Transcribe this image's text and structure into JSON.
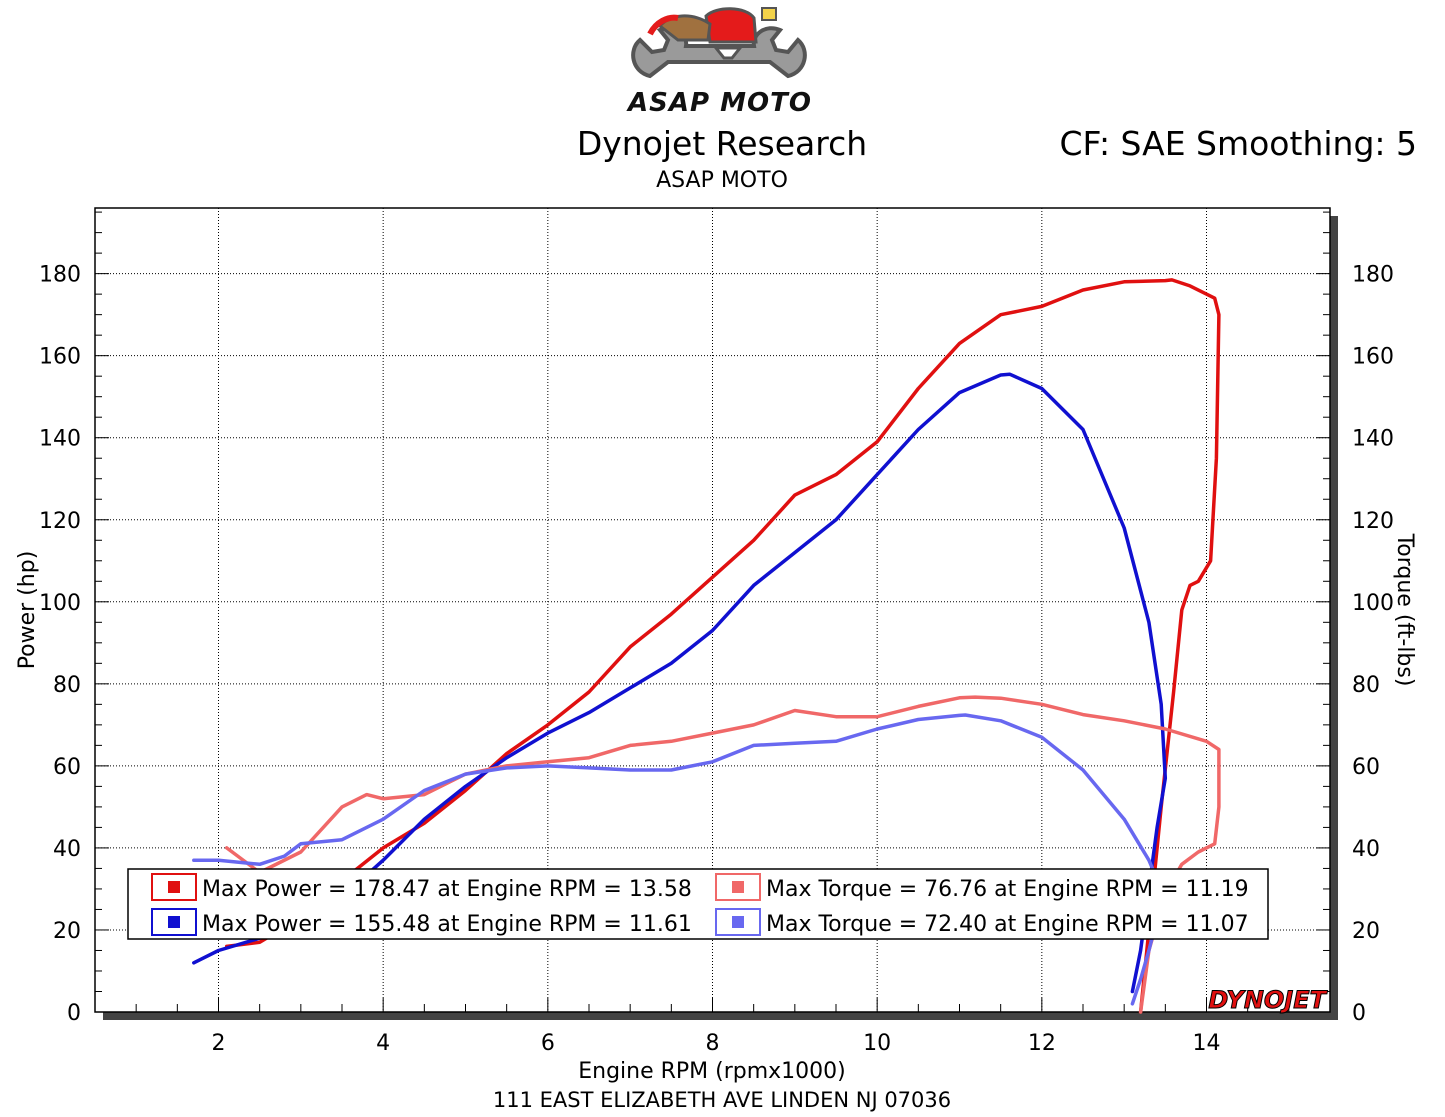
{
  "header": {
    "logo_text": "ASAP MOTO",
    "logo_icon": "motorcycle-wrench-icon",
    "title": "Dynojet Research",
    "subtitle": "ASAP MOTO",
    "cf_info": "CF: SAE Smoothing: 5"
  },
  "footer": {
    "address": "111 EAST ELIZABETH AVE LINDEN NJ 07036",
    "brand": "DYNOJET"
  },
  "legend": [
    {
      "text": "Max Power = 178.47 at Engine RPM = 13.58",
      "color": "#e01010"
    },
    {
      "text": "Max Power = 155.48 at Engine RPM = 11.61",
      "color": "#1010d0"
    },
    {
      "text": "Max Torque = 76.76 at Engine RPM = 11.19",
      "color": "#f06868"
    },
    {
      "text": "Max Torque = 72.40 at Engine RPM = 11.07",
      "color": "#6868f0"
    }
  ],
  "chart_data": {
    "type": "line",
    "xlabel": "Engine RPM (rpmx1000)",
    "ylabel": "Power (hp)",
    "y2label": "Torque (ft-lbs)",
    "xlim": [
      0.5,
      15.5
    ],
    "ylim": [
      0,
      196
    ],
    "y2lim": [
      0,
      196
    ],
    "x_ticks": [
      2,
      4,
      6,
      8,
      10,
      12,
      14
    ],
    "y_ticks": [
      0,
      20,
      40,
      60,
      80,
      100,
      120,
      140,
      160,
      180
    ],
    "y2_ticks": [
      0,
      20,
      40,
      60,
      80,
      100,
      120,
      140,
      160,
      180
    ],
    "grid": true,
    "legend_position": "bottom",
    "series": [
      {
        "color": "#e01010",
        "axis": "power",
        "x": [
          2.1,
          2.5,
          3.0,
          3.5,
          4.0,
          4.5,
          5.0,
          5.5,
          6.0,
          6.5,
          7.0,
          7.5,
          8.0,
          8.5,
          9.0,
          9.5,
          10.0,
          10.5,
          11.0,
          11.5,
          12.0,
          12.5,
          13.0,
          13.5,
          13.58,
          13.8,
          14.1,
          14.15,
          14.12,
          14.05,
          13.9,
          13.8,
          13.7,
          13.6,
          13.45,
          13.3,
          13.2
        ],
        "y": [
          16,
          17,
          23,
          32,
          40,
          46,
          54,
          63,
          70,
          78,
          89,
          97,
          106,
          115,
          126,
          131,
          139,
          152,
          163,
          170,
          172,
          176,
          178,
          178.3,
          178.47,
          177,
          174,
          170,
          135,
          110,
          105,
          104,
          98,
          78,
          50,
          20,
          0
        ]
      },
      {
        "color": "#1010d0",
        "axis": "power",
        "x": [
          1.7,
          2.0,
          2.5,
          3.0,
          3.5,
          4.0,
          4.5,
          5.0,
          5.5,
          6.0,
          6.5,
          7.0,
          7.5,
          8.0,
          8.5,
          9.0,
          9.5,
          10.0,
          10.5,
          11.0,
          11.5,
          11.61,
          12.0,
          12.5,
          13.0,
          13.3,
          13.45,
          13.5,
          13.4,
          13.3,
          13.2,
          13.1
        ],
        "y": [
          12,
          15,
          18,
          22,
          28,
          37,
          47,
          55,
          62,
          68,
          73,
          79,
          85,
          93,
          104,
          112,
          120,
          131,
          142,
          151,
          155.3,
          155.48,
          152,
          142,
          118,
          95,
          75,
          57,
          45,
          30,
          15,
          5
        ]
      },
      {
        "color": "#f06868",
        "axis": "torque",
        "x": [
          2.1,
          2.5,
          3.0,
          3.5,
          3.8,
          4.0,
          4.5,
          5.0,
          5.5,
          6.0,
          6.5,
          7.0,
          7.5,
          8.0,
          8.5,
          9.0,
          9.5,
          10.0,
          10.5,
          11.0,
          11.19,
          11.5,
          12.0,
          12.5,
          13.0,
          13.5,
          14.0,
          14.15,
          14.15,
          14.1,
          13.9,
          13.7,
          13.5,
          13.3,
          13.2
        ],
        "y": [
          40,
          34,
          39,
          50,
          53,
          52,
          53,
          58,
          60,
          61,
          62,
          65,
          66,
          68,
          70,
          73.5,
          72,
          72,
          74.5,
          76.6,
          76.76,
          76.5,
          75,
          72.5,
          71,
          69,
          66,
          64,
          50,
          41,
          39,
          36,
          29,
          15,
          0
        ]
      },
      {
        "color": "#6868f0",
        "axis": "torque",
        "x": [
          1.7,
          2.0,
          2.5,
          2.8,
          3.0,
          3.5,
          4.0,
          4.5,
          5.0,
          5.5,
          6.0,
          6.5,
          7.0,
          7.5,
          8.0,
          8.5,
          9.0,
          9.5,
          10.0,
          10.5,
          11.0,
          11.07,
          11.5,
          12.0,
          12.5,
          13.0,
          13.3,
          13.45,
          13.4,
          13.3,
          13.2,
          13.1
        ],
        "y": [
          37,
          37,
          36,
          38,
          41,
          42,
          47,
          54,
          58,
          59.5,
          60,
          59.5,
          59,
          59,
          61,
          65,
          65.5,
          66,
          69,
          71.3,
          72.3,
          72.4,
          71,
          67,
          59,
          47,
          37,
          30,
          23,
          15,
          8,
          2
        ]
      }
    ]
  }
}
